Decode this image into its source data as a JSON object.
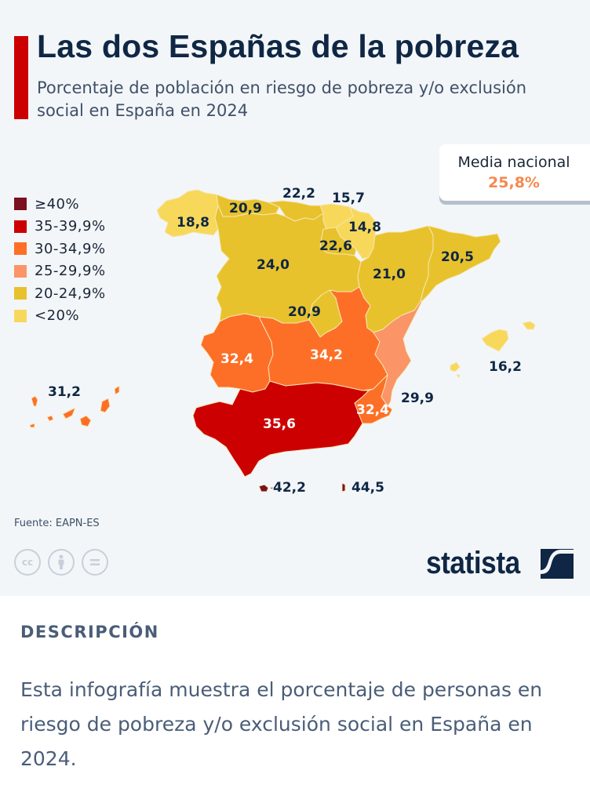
{
  "header": {
    "title": "Las dos Españas de la pobreza",
    "subtitle": "Porcentaje de población en riesgo de pobreza y/o exclusión social en España en 2024"
  },
  "national_average": {
    "label": "Media nacional",
    "value": "25,8%"
  },
  "legend": [
    {
      "label": "≥40%",
      "color": "#7a1020"
    },
    {
      "label": "35-39,9%",
      "color": "#cc0000"
    },
    {
      "label": "30-34,9%",
      "color": "#fd6f27"
    },
    {
      "label": "25-29,9%",
      "color": "#fb9466"
    },
    {
      "label": "20-24,9%",
      "color": "#e8c22c"
    },
    {
      "label": "<20%",
      "color": "#f7d85a"
    }
  ],
  "footer": {
    "source": "Fuente: EAPN-ES",
    "license_icons": [
      "cc-icon",
      "attribution-icon",
      "no-derivatives-icon"
    ],
    "brand": "statista"
  },
  "description": {
    "heading": "DESCRIPCIÓN",
    "text": "Esta infografía muestra el porcentaje de personas en riesgo de pobreza y/o exclusión social en España en 2024."
  },
  "chart_data": {
    "type": "choropleth-map",
    "title": "Las dos Españas de la pobreza",
    "subtitle": "Porcentaje de población en riesgo de pobreza y/o exclusión social en España en 2024",
    "unit": "%",
    "national_average": 25.8,
    "bins": [
      {
        "label": "≥40%",
        "min": 40,
        "max": null,
        "color": "#7a1020"
      },
      {
        "label": "35-39,9%",
        "min": 35,
        "max": 39.9,
        "color": "#cc0000"
      },
      {
        "label": "30-34,9%",
        "min": 30,
        "max": 34.9,
        "color": "#fd6f27"
      },
      {
        "label": "25-29,9%",
        "min": 25,
        "max": 29.9,
        "color": "#fb9466"
      },
      {
        "label": "20-24,9%",
        "min": 20,
        "max": 24.9,
        "color": "#e8c22c"
      },
      {
        "label": "<20%",
        "min": null,
        "max": 19.9,
        "color": "#f7d85a"
      }
    ],
    "regions": [
      {
        "id": "galicia",
        "value": 18.8,
        "display": "18,8"
      },
      {
        "id": "asturias",
        "value": 20.9,
        "display": "20,9"
      },
      {
        "id": "cantabria",
        "value": 22.2,
        "display": "22,2"
      },
      {
        "id": "pais-vasco",
        "value": 15.7,
        "display": "15,7"
      },
      {
        "id": "navarra",
        "value": 14.8,
        "display": "14,8"
      },
      {
        "id": "la-rioja",
        "value": 22.6,
        "display": "22,6"
      },
      {
        "id": "castilla-y-leon",
        "value": 24.0,
        "display": "24,0"
      },
      {
        "id": "aragon",
        "value": 21.0,
        "display": "21,0"
      },
      {
        "id": "cataluna",
        "value": 20.5,
        "display": "20,5"
      },
      {
        "id": "madrid",
        "value": 20.9,
        "display": "20,9"
      },
      {
        "id": "extremadura",
        "value": 32.4,
        "display": "32,4"
      },
      {
        "id": "castilla-la-mancha",
        "value": 34.2,
        "display": "34,2"
      },
      {
        "id": "comunidad-valenciana",
        "value": 29.9,
        "display": "29,9"
      },
      {
        "id": "murcia",
        "value": 32.4,
        "display": "32,4"
      },
      {
        "id": "andalucia",
        "value": 35.6,
        "display": "35,6"
      },
      {
        "id": "baleares",
        "value": 16.2,
        "display": "16,2"
      },
      {
        "id": "canarias",
        "value": 31.2,
        "display": "31,2"
      },
      {
        "id": "ceuta",
        "value": 42.2,
        "display": "42,2"
      },
      {
        "id": "melilla",
        "value": 44.5,
        "display": "44,5"
      }
    ],
    "source": "EAPN-ES"
  }
}
